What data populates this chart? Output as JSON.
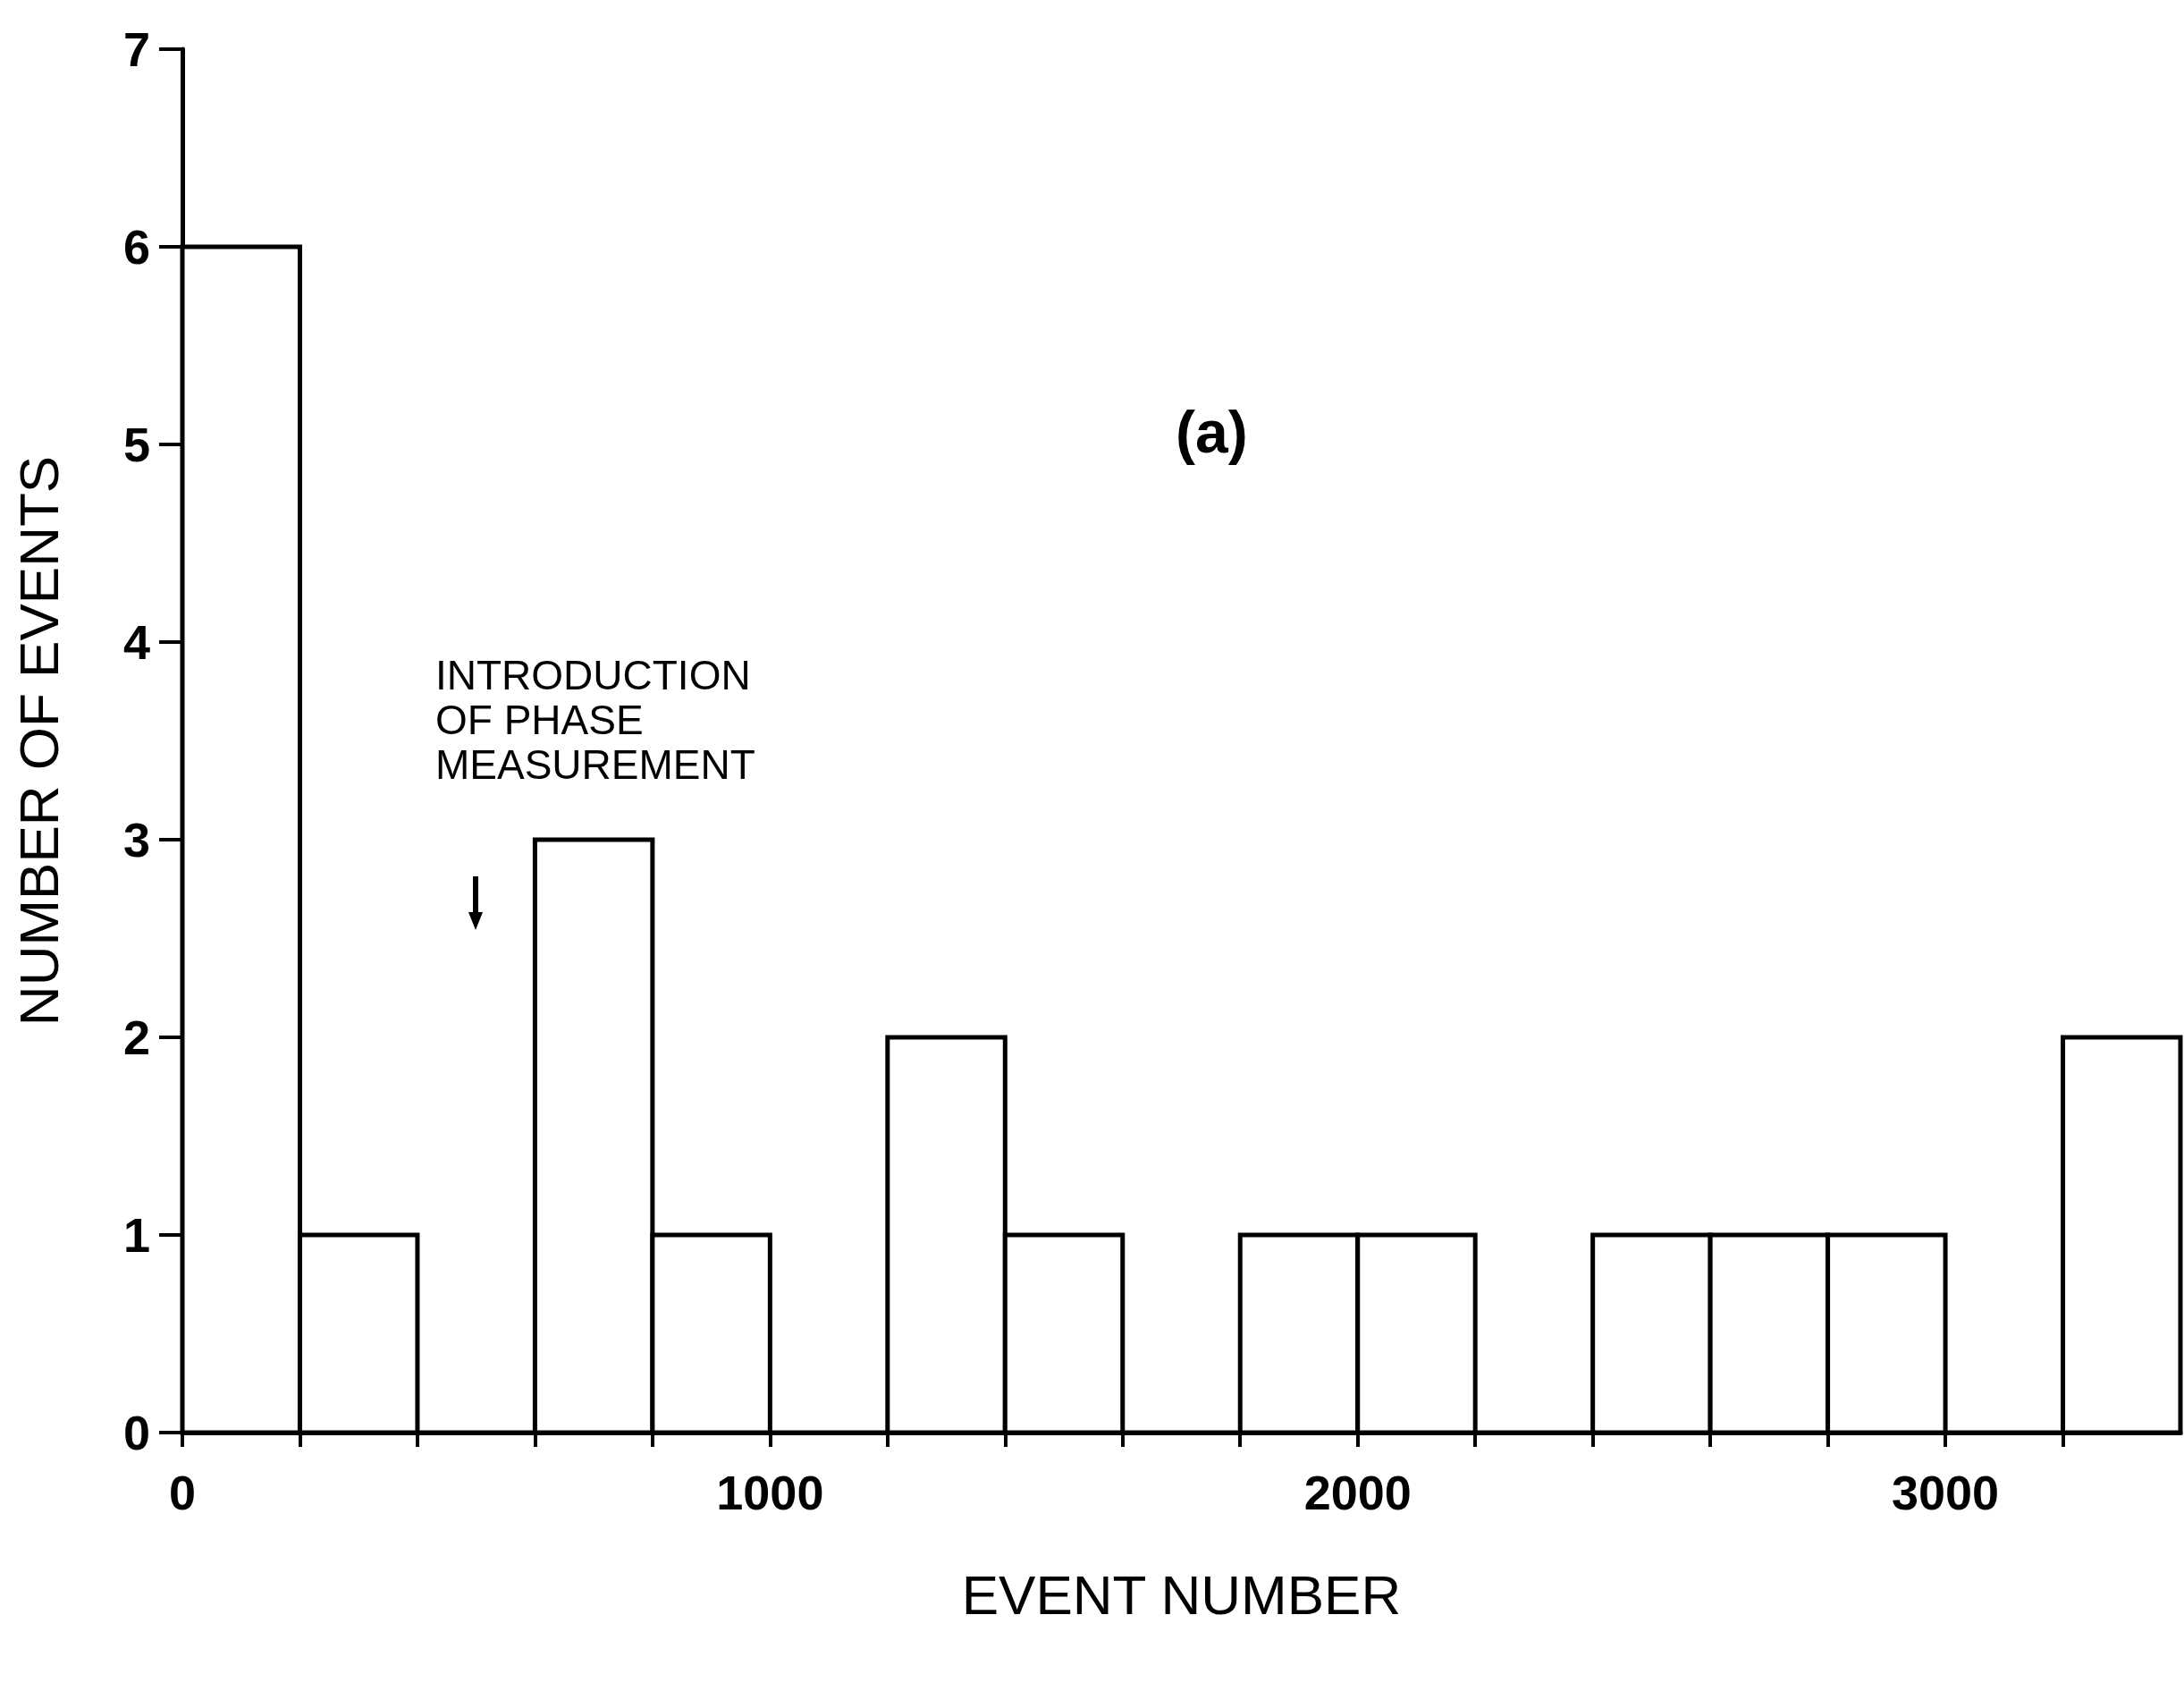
{
  "chart_data": {
    "type": "histogram",
    "xlabel": "EVENT NUMBER",
    "ylabel": "NUMBER OF EVENTS",
    "bins": [
      0,
      200,
      400,
      600,
      800,
      1000,
      1200,
      1400,
      1600,
      1800,
      2000,
      2200,
      2400,
      2600,
      2800,
      3000,
      3200,
      3400
    ],
    "values": [
      6,
      1,
      0,
      3,
      1,
      0,
      2,
      1,
      0,
      1,
      1,
      0,
      1,
      1,
      1,
      0,
      2
    ],
    "color": "#000000",
    "xlim": [
      0,
      3400
    ],
    "xticks": [
      0,
      {
        "value": 200,
        "label": null
      },
      {
        "value": 400,
        "label": null
      },
      {
        "value": 600,
        "label": null
      },
      {
        "value": 800,
        "label": null
      },
      1000,
      {
        "value": 1200,
        "label": null
      },
      {
        "value": 1400,
        "label": null
      },
      {
        "value": 1600,
        "label": null
      },
      {
        "value": 1800,
        "label": null
      },
      2000,
      {
        "value": 2200,
        "label": null
      },
      {
        "value": 2400,
        "label": null
      },
      {
        "value": 2600,
        "label": null
      },
      {
        "value": 2800,
        "label": null
      },
      3000,
      {
        "value": 3200,
        "label": null
      }
    ],
    "ylim": [
      0,
      7
    ],
    "yticks": [
      0,
      1,
      2,
      3,
      4,
      5,
      6,
      7
    ],
    "grid": false,
    "annotations": [
      "INTRODUCTION\nOF PHASE\nMEASUREMENT",
      "(a)"
    ]
  }
}
